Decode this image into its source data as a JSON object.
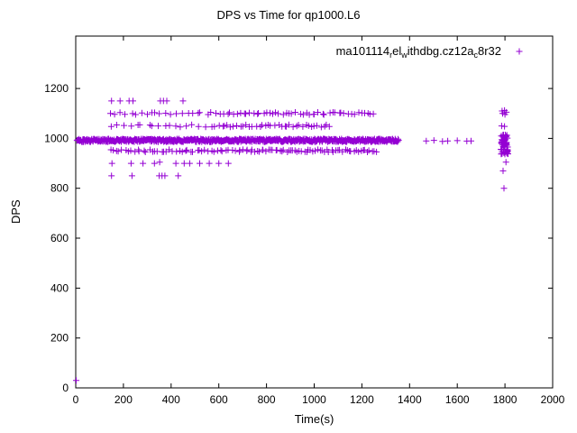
{
  "chart_data": {
    "type": "scatter",
    "title": "DPS vs Time for qp1000.L6",
    "xlabel": "Time(s)",
    "ylabel": "DPS",
    "xlim": [
      0,
      2000
    ],
    "ylim": [
      0,
      1410
    ],
    "xticks": [
      0,
      200,
      400,
      600,
      800,
      1000,
      1200,
      1400,
      1600,
      1800,
      2000
    ],
    "yticks": [
      0,
      200,
      400,
      600,
      800,
      1000,
      1200
    ],
    "grid": false,
    "marker": "plus",
    "marker_color": "#9400D3",
    "axis_color": "#000000",
    "legend": {
      "position": "top-right-inside",
      "segments": [
        {
          "text": "ma101114"
        },
        {
          "text": "r",
          "sub": true
        },
        {
          "text": "el"
        },
        {
          "text": "w",
          "sub": true
        },
        {
          "text": "ithdbg.cz12a"
        },
        {
          "text": "c",
          "sub": true
        },
        {
          "text": "8r32"
        }
      ]
    },
    "bands": [
      {
        "y": 992,
        "y_jitter": 6,
        "x_start": 4,
        "x_end": 1355,
        "count": 700
      },
      {
        "y": 950,
        "y_jitter": 5,
        "x_start": 140,
        "x_end": 700,
        "count": 45
      },
      {
        "y": 950,
        "y_jitter": 5,
        "x_start": 700,
        "x_end": 1265,
        "count": 60
      },
      {
        "y": 1100,
        "y_jitter": 5,
        "x_start": 140,
        "x_end": 600,
        "count": 22
      },
      {
        "y": 1100,
        "y_jitter": 5,
        "x_start": 600,
        "x_end": 1260,
        "count": 48
      },
      {
        "y": 1050,
        "y_jitter": 5,
        "x_start": 145,
        "x_end": 580,
        "count": 18
      },
      {
        "y": 1050,
        "y_jitter": 5,
        "x_start": 580,
        "x_end": 1075,
        "count": 38
      },
      {
        "y": 975,
        "y_jitter": 40,
        "x_start": 1783,
        "x_end": 1813,
        "count": 55
      }
    ],
    "points": [
      [
        2,
        30
      ],
      [
        150,
        1150
      ],
      [
        186,
        1150
      ],
      [
        224,
        1150
      ],
      [
        240,
        1150
      ],
      [
        355,
        1150
      ],
      [
        368,
        1150
      ],
      [
        382,
        1150
      ],
      [
        450,
        1150
      ],
      [
        150,
        850
      ],
      [
        236,
        850
      ],
      [
        350,
        850
      ],
      [
        362,
        850
      ],
      [
        374,
        850
      ],
      [
        430,
        850
      ],
      [
        152,
        900
      ],
      [
        232,
        900
      ],
      [
        282,
        900
      ],
      [
        330,
        900
      ],
      [
        352,
        905
      ],
      [
        420,
        900
      ],
      [
        455,
        900
      ],
      [
        478,
        900
      ],
      [
        520,
        900
      ],
      [
        560,
        900
      ],
      [
        600,
        900
      ],
      [
        640,
        900
      ],
      [
        1470,
        990
      ],
      [
        1502,
        992
      ],
      [
        1538,
        988
      ],
      [
        1560,
        990
      ],
      [
        1600,
        991
      ],
      [
        1640,
        989
      ],
      [
        1658,
        990
      ],
      [
        1788,
        1110
      ],
      [
        1798,
        1112
      ],
      [
        1806,
        1105
      ],
      [
        1790,
        1100
      ],
      [
        1800,
        1096
      ],
      [
        1786,
        1050
      ],
      [
        1798,
        1048
      ],
      [
        1792,
        870
      ],
      [
        1796,
        800
      ],
      [
        1804,
        905
      ],
      [
        1808,
        945
      ]
    ]
  }
}
